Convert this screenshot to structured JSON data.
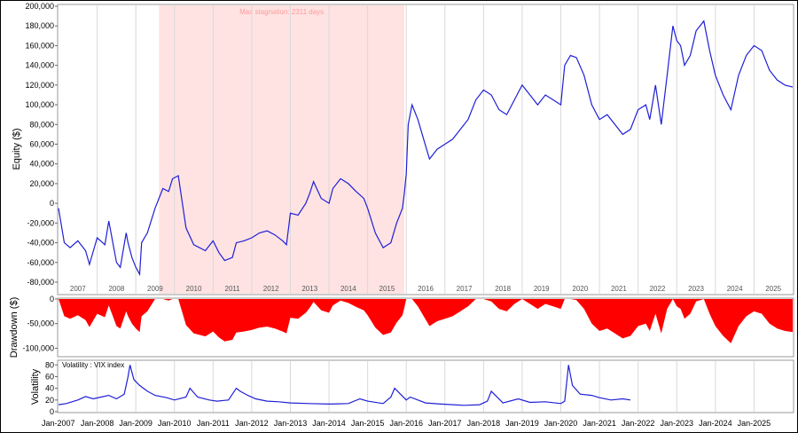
{
  "chart_data": [
    {
      "type": "line",
      "panel": "equity",
      "ylabel": "Equity ($)",
      "ylim": [
        -80000,
        200000
      ],
      "yticks": [
        200000,
        180000,
        160000,
        140000,
        120000,
        100000,
        80000,
        60000,
        40000,
        20000,
        0,
        -20000,
        -40000,
        -60000,
        -80000
      ],
      "ytick_labels": [
        "200,000",
        "180,000",
        "160,000",
        "140,000",
        "120,000",
        "100,000",
        "80,000",
        "60,000",
        "40,000",
        "20,000",
        "0",
        "-20,000",
        "-40,000",
        "-60,000",
        "-80,000"
      ],
      "xlim": [
        2007.0,
        2026.0
      ],
      "year_labels": [
        "2007",
        "2008",
        "2009",
        "2010",
        "2011",
        "2012",
        "2013",
        "2014",
        "2015",
        "2016",
        "2017",
        "2018",
        "2019",
        "2020",
        "2021",
        "2022",
        "2023",
        "2024",
        "2025"
      ],
      "grid": true,
      "color": "#1f1fd6",
      "annotation": {
        "text": "Max stagnation: 2311 days",
        "x_start": 2009.6,
        "x_end": 2015.95,
        "color": "#ffd6d6"
      },
      "series": [
        {
          "x": [
            2007.0,
            2007.15,
            2007.3,
            2007.5,
            2007.7,
            2007.8,
            2008.0,
            2008.2,
            2008.3,
            2008.5,
            2008.6,
            2008.75,
            2008.8,
            2008.9,
            2009.0,
            2009.1,
            2009.15,
            2009.3,
            2009.5,
            2009.7,
            2009.85,
            2009.95,
            2010.1,
            2010.3,
            2010.5,
            2010.8,
            2011.0,
            2011.15,
            2011.3,
            2011.5,
            2011.6,
            2011.8,
            2012.0,
            2012.2,
            2012.4,
            2012.6,
            2012.8,
            2012.9,
            2013.0,
            2013.2,
            2013.4,
            2013.5,
            2013.6,
            2013.8,
            2014.0,
            2014.1,
            2014.3,
            2014.5,
            2014.7,
            2014.9,
            2015.0,
            2015.2,
            2015.4,
            2015.6,
            2015.75,
            2015.9,
            2015.95,
            2016.0,
            2016.05,
            2016.15,
            2016.3,
            2016.45,
            2016.6,
            2016.8,
            2017.0,
            2017.2,
            2017.4,
            2017.6,
            2017.8,
            2018.0,
            2018.2,
            2018.4,
            2018.6,
            2018.8,
            2019.0,
            2019.2,
            2019.4,
            2019.6,
            2019.8,
            2020.0,
            2020.1,
            2020.25,
            2020.4,
            2020.6,
            2020.8,
            2021.0,
            2021.2,
            2021.4,
            2021.6,
            2021.8,
            2022.0,
            2022.2,
            2022.3,
            2022.45,
            2022.6,
            2022.75,
            2022.9,
            2023.0,
            2023.1,
            2023.2,
            2023.35,
            2023.5,
            2023.7,
            2023.85,
            2024.0,
            2024.2,
            2024.4,
            2024.6,
            2024.8,
            2025.0,
            2025.2,
            2025.4,
            2025.6,
            2025.8,
            2026.0
          ],
          "y": [
            -5000,
            -40000,
            -45000,
            -38000,
            -48000,
            -62000,
            -35000,
            -42000,
            -18000,
            -60000,
            -65000,
            -30000,
            -40000,
            -55000,
            -65000,
            -72000,
            -40000,
            -30000,
            -5000,
            15000,
            12000,
            25000,
            28000,
            -25000,
            -42000,
            -48000,
            -38000,
            -50000,
            -58000,
            -55000,
            -40000,
            -38000,
            -35000,
            -30000,
            -28000,
            -32000,
            -38000,
            -42000,
            -10000,
            -12000,
            0,
            10000,
            22000,
            5000,
            0,
            15000,
            25000,
            20000,
            12000,
            5000,
            -5000,
            -30000,
            -45000,
            -40000,
            -20000,
            -5000,
            10000,
            30000,
            80000,
            100000,
            85000,
            65000,
            45000,
            55000,
            60000,
            65000,
            75000,
            85000,
            105000,
            115000,
            110000,
            95000,
            90000,
            105000,
            120000,
            110000,
            100000,
            110000,
            105000,
            100000,
            140000,
            150000,
            148000,
            130000,
            100000,
            85000,
            90000,
            80000,
            70000,
            75000,
            95000,
            100000,
            85000,
            120000,
            80000,
            130000,
            180000,
            165000,
            160000,
            140000,
            150000,
            175000,
            185000,
            155000,
            130000,
            110000,
            95000,
            130000,
            150000,
            160000,
            155000,
            135000,
            125000,
            120000,
            118000
          ]
        }
      ]
    },
    {
      "type": "area",
      "panel": "drawdown",
      "ylabel": "Drawdown ($)",
      "ylim": [
        -110000,
        0
      ],
      "yticks": [
        0,
        -50000,
        -100000
      ],
      "ytick_labels": [
        "0",
        "-50,000",
        "-100,000"
      ],
      "xlim": [
        2007.0,
        2026.0
      ],
      "grid": false,
      "color": "#ff0000",
      "series": [
        {
          "x": [
            2007.0,
            2007.15,
            2007.3,
            2007.5,
            2007.7,
            2007.8,
            2008.0,
            2008.2,
            2008.3,
            2008.5,
            2008.6,
            2008.75,
            2008.8,
            2008.9,
            2009.0,
            2009.1,
            2009.15,
            2009.3,
            2009.5,
            2009.7,
            2009.85,
            2009.95,
            2010.1,
            2010.3,
            2010.5,
            2010.8,
            2011.0,
            2011.15,
            2011.3,
            2011.5,
            2011.6,
            2011.8,
            2012.0,
            2012.2,
            2012.4,
            2012.6,
            2012.8,
            2012.9,
            2013.0,
            2013.2,
            2013.4,
            2013.5,
            2013.6,
            2013.8,
            2014.0,
            2014.1,
            2014.3,
            2014.5,
            2014.7,
            2014.9,
            2015.0,
            2015.2,
            2015.4,
            2015.6,
            2015.75,
            2015.9,
            2015.95,
            2016.0,
            2016.05,
            2016.15,
            2016.3,
            2016.45,
            2016.6,
            2016.8,
            2017.0,
            2017.2,
            2017.4,
            2017.6,
            2017.8,
            2018.0,
            2018.2,
            2018.4,
            2018.6,
            2018.8,
            2019.0,
            2019.2,
            2019.4,
            2019.6,
            2019.8,
            2020.0,
            2020.1,
            2020.25,
            2020.4,
            2020.6,
            2020.8,
            2021.0,
            2021.2,
            2021.4,
            2021.6,
            2021.8,
            2022.0,
            2022.2,
            2022.3,
            2022.45,
            2022.6,
            2022.75,
            2022.9,
            2023.0,
            2023.1,
            2023.2,
            2023.35,
            2023.5,
            2023.7,
            2023.85,
            2024.0,
            2024.2,
            2024.4,
            2024.6,
            2024.8,
            2025.0,
            2025.2,
            2025.4,
            2025.6,
            2025.8,
            2026.0
          ],
          "y": [
            0,
            -35000,
            -40000,
            -33000,
            -43000,
            -57000,
            -30000,
            -37000,
            -13000,
            -55000,
            -60000,
            -25000,
            -35000,
            -50000,
            -60000,
            -67000,
            -35000,
            -25000,
            0,
            0,
            -3000,
            0,
            0,
            -53000,
            -70000,
            -76000,
            -66000,
            -78000,
            -86000,
            -83000,
            -68000,
            -66000,
            -63000,
            -58000,
            -56000,
            -60000,
            -66000,
            -70000,
            -38000,
            -40000,
            -28000,
            -18000,
            -6000,
            -23000,
            -28000,
            -13000,
            -3000,
            -8000,
            -16000,
            -23000,
            -33000,
            -58000,
            -73000,
            -68000,
            -48000,
            -33000,
            -18000,
            0,
            0,
            0,
            -15000,
            -35000,
            -55000,
            -45000,
            -40000,
            -35000,
            -25000,
            -15000,
            0,
            0,
            -5000,
            -20000,
            -25000,
            -10000,
            0,
            -10000,
            -20000,
            -10000,
            -15000,
            -20000,
            0,
            0,
            -2000,
            -20000,
            -50000,
            -65000,
            -60000,
            -70000,
            -80000,
            -75000,
            -55000,
            -50000,
            -65000,
            -30000,
            -70000,
            -20000,
            0,
            -15000,
            -20000,
            -40000,
            -30000,
            -5000,
            0,
            -30000,
            -55000,
            -75000,
            -90000,
            -55000,
            -35000,
            -25000,
            -30000,
            -50000,
            -60000,
            -65000,
            -67000
          ]
        }
      ]
    },
    {
      "type": "line",
      "panel": "volatility",
      "title": "Volatility : VIX index",
      "ylabel": "Volatility",
      "ylim": [
        0,
        85
      ],
      "yticks": [
        80,
        60,
        40,
        20,
        0
      ],
      "ytick_labels": [
        "80",
        "60",
        "40",
        "20",
        "0"
      ],
      "xlim": [
        2007.0,
        2026.0
      ],
      "xtick_labels": [
        "Jan-2007",
        "Jan-2008",
        "Jan-2009",
        "Jan-2010",
        "Jan-2011",
        "Jan-2012",
        "Jan-2013",
        "Jan-2014",
        "Jan-2015",
        "Jan-2016",
        "Jan-2017",
        "Jan-2018",
        "Jan-2019",
        "Jan-2020",
        "Jan-2021",
        "Jan-2022",
        "Jan-2023",
        "Jan-2024",
        "Jan-2025"
      ],
      "grid": true,
      "color": "#1f1fd6",
      "series": [
        {
          "x": [
            2007.0,
            2007.2,
            2007.5,
            2007.7,
            2007.9,
            2008.1,
            2008.3,
            2008.5,
            2008.7,
            2008.8,
            2008.85,
            2008.95,
            2009.1,
            2009.3,
            2009.5,
            2009.8,
            2010.0,
            2010.3,
            2010.4,
            2010.6,
            2010.9,
            2011.1,
            2011.4,
            2011.6,
            2011.7,
            2011.9,
            2012.1,
            2012.4,
            2012.7,
            2013.0,
            2013.5,
            2014.0,
            2014.5,
            2014.8,
            2015.0,
            2015.4,
            2015.6,
            2015.7,
            2016.0,
            2016.1,
            2016.5,
            2016.9,
            2017.5,
            2017.9,
            2018.1,
            2018.2,
            2018.5,
            2018.9,
            2019.2,
            2019.6,
            2020.0,
            2020.1,
            2020.2,
            2020.3,
            2020.5,
            2020.8,
            2021.0,
            2021.3,
            2021.6,
            2021.8
          ],
          "y": [
            12,
            14,
            20,
            26,
            22,
            25,
            28,
            22,
            30,
            60,
            80,
            55,
            45,
            35,
            28,
            24,
            20,
            25,
            40,
            25,
            20,
            18,
            20,
            40,
            35,
            28,
            22,
            18,
            17,
            15,
            14,
            13,
            14,
            22,
            18,
            14,
            25,
            40,
            20,
            25,
            15,
            13,
            11,
            12,
            18,
            35,
            15,
            22,
            16,
            17,
            14,
            18,
            80,
            45,
            30,
            28,
            24,
            20,
            22,
            20
          ]
        }
      ]
    }
  ]
}
